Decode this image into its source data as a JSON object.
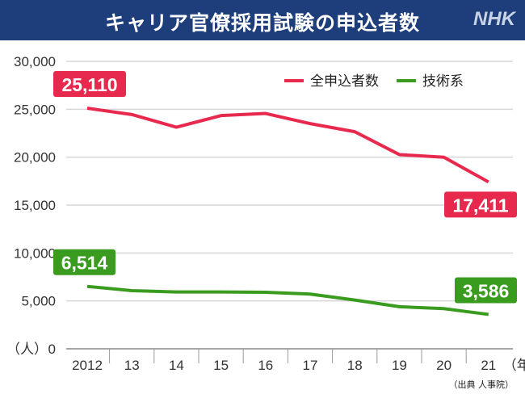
{
  "header": {
    "title": "キャリア官僚採用試験の申込者数",
    "logo": "NHK"
  },
  "source": "（出典 人事院）",
  "chart_data": {
    "type": "line",
    "title": "キャリア官僚採用試験の申込者数",
    "x": [
      "2012",
      "13",
      "14",
      "15",
      "16",
      "17",
      "18",
      "19",
      "20",
      "21"
    ],
    "xunit": "（年）",
    "yunit": "（人）",
    "ylim": [
      0,
      30000
    ],
    "yticks": [
      "0",
      "5,000",
      "10,000",
      "15,000",
      "20,000",
      "25,000",
      "30,000"
    ],
    "grid": true,
    "legend": "top-right",
    "series": [
      {
        "name": "全申込者数",
        "color": "#e8294e",
        "values": [
          25110,
          24450,
          23130,
          24340,
          24560,
          23500,
          22660,
          20270,
          19990,
          17411
        ],
        "labels": {
          "first": "25,110",
          "last": "17,411"
        }
      },
      {
        "name": "技術系",
        "color": "#3a9c1f",
        "values": [
          6514,
          6070,
          5930,
          5930,
          5900,
          5710,
          5090,
          4390,
          4190,
          3586
        ],
        "labels": {
          "first": "6,514",
          "last": "3,586"
        }
      }
    ]
  }
}
